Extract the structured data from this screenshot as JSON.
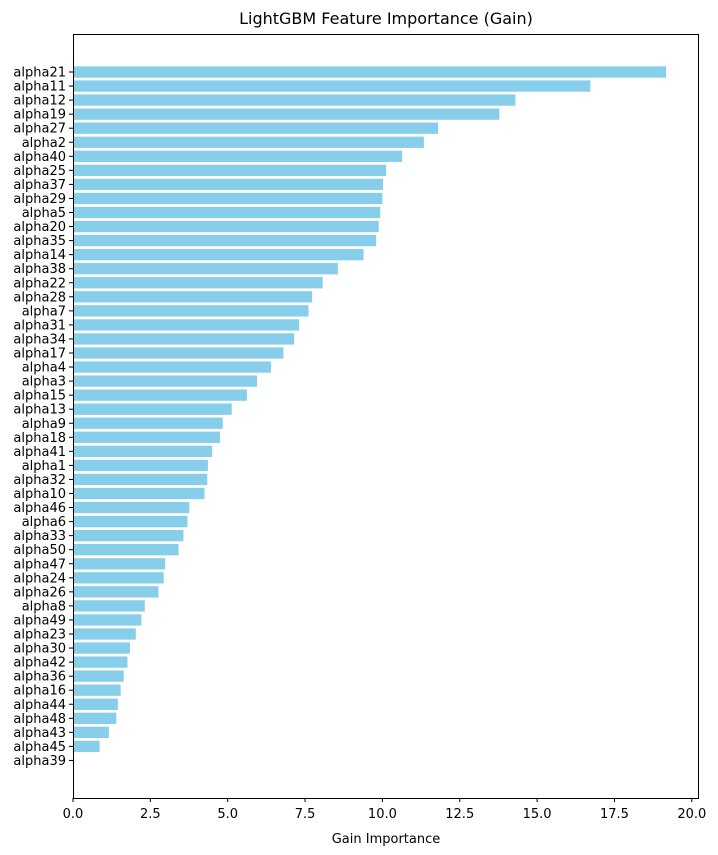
{
  "chart_data": {
    "type": "bar",
    "orientation": "horizontal",
    "title": "LightGBM Feature Importance (Gain)",
    "xlabel": "Gain Importance",
    "ylabel": "",
    "xlim": [
      0,
      20.2
    ],
    "xticks": [
      0.0,
      2.5,
      5.0,
      7.5,
      10.0,
      12.5,
      15.0,
      17.5,
      20.0
    ],
    "xtick_labels": [
      "0.0",
      "2.5",
      "5.0",
      "7.5",
      "10.0",
      "12.5",
      "15.0",
      "17.5",
      "20.0"
    ],
    "grid": false,
    "legend": "none",
    "bar_color": "#87CEEB",
    "categories": [
      "alpha21",
      "alpha11",
      "alpha12",
      "alpha19",
      "alpha27",
      "alpha2",
      "alpha40",
      "alpha25",
      "alpha37",
      "alpha29",
      "alpha5",
      "alpha20",
      "alpha35",
      "alpha14",
      "alpha38",
      "alpha22",
      "alpha28",
      "alpha7",
      "alpha31",
      "alpha34",
      "alpha17",
      "alpha4",
      "alpha3",
      "alpha15",
      "alpha13",
      "alpha9",
      "alpha18",
      "alpha41",
      "alpha1",
      "alpha32",
      "alpha10",
      "alpha46",
      "alpha6",
      "alpha33",
      "alpha50",
      "alpha47",
      "alpha24",
      "alpha26",
      "alpha8",
      "alpha49",
      "alpha23",
      "alpha30",
      "alpha42",
      "alpha36",
      "alpha16",
      "alpha44",
      "alpha48",
      "alpha43",
      "alpha45",
      "alpha39"
    ],
    "values": [
      19.17,
      16.72,
      14.3,
      13.78,
      11.8,
      11.34,
      10.64,
      10.12,
      10.02,
      10.0,
      9.93,
      9.88,
      9.8,
      9.39,
      8.56,
      8.07,
      7.73,
      7.61,
      7.31,
      7.15,
      6.8,
      6.4,
      5.95,
      5.62,
      5.13,
      4.84,
      4.75,
      4.5,
      4.36,
      4.34,
      4.25,
      3.76,
      3.7,
      3.57,
      3.41,
      2.98,
      2.93,
      2.76,
      2.32,
      2.21,
      2.03,
      1.84,
      1.76,
      1.64,
      1.54,
      1.45,
      1.4,
      1.16,
      0.86,
      0.0
    ]
  }
}
